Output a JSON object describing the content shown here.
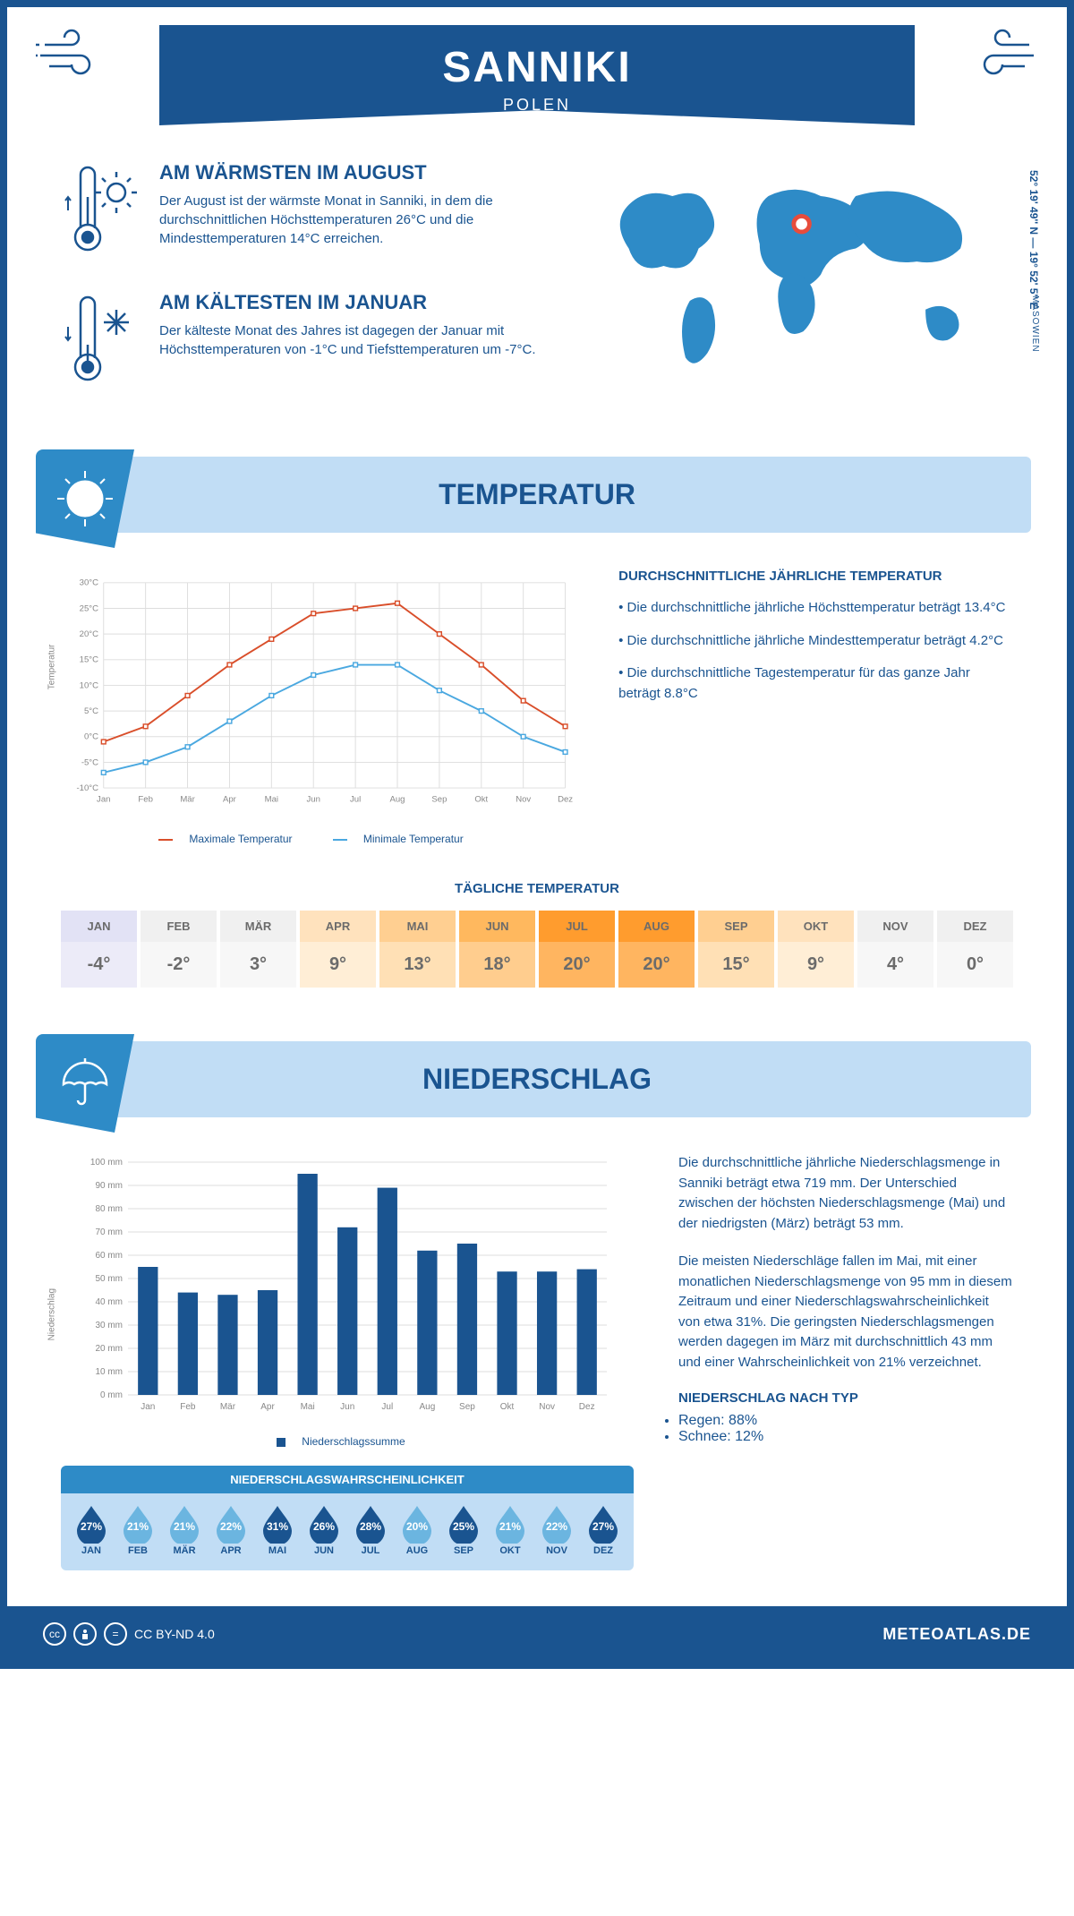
{
  "header": {
    "city": "SANNIKI",
    "country": "POLEN"
  },
  "coords": "52° 19' 49'' N — 19° 52' 5'' E",
  "region": "MASOWIEN",
  "warmest": {
    "title": "AM WÄRMSTEN IM AUGUST",
    "text": "Der August ist der wärmste Monat in Sanniki, in dem die durchschnittlichen Höchsttemperaturen 26°C und die Mindesttemperaturen 14°C erreichen."
  },
  "coldest": {
    "title": "AM KÄLTESTEN IM JANUAR",
    "text": "Der kälteste Monat des Jahres ist dagegen der Januar mit Höchsttemperaturen von -1°C und Tiefsttemperaturen um -7°C."
  },
  "temp_section_title": "TEMPERATUR",
  "temp_chart": {
    "type": "line",
    "months": [
      "Jan",
      "Feb",
      "Mär",
      "Apr",
      "Mai",
      "Jun",
      "Jul",
      "Aug",
      "Sep",
      "Okt",
      "Nov",
      "Dez"
    ],
    "max": [
      -1,
      2,
      8,
      14,
      19,
      24,
      25,
      26,
      20,
      14,
      7,
      2
    ],
    "min": [
      -7,
      -5,
      -2,
      3,
      8,
      12,
      14,
      14,
      9,
      5,
      0,
      -3
    ],
    "max_color": "#d94e2a",
    "min_color": "#4aa8e0",
    "ylim": [
      -10,
      30
    ],
    "ytick_step": 5,
    "y_format": "°C",
    "ylabel": "Temperatur",
    "legend_max": "Maximale Temperatur",
    "legend_min": "Minimale Temperatur",
    "grid_color": "#dddddd",
    "bg_color": "#ffffff",
    "line_width": 2,
    "marker": "square",
    "marker_size": 5
  },
  "temp_text": {
    "title": "DURCHSCHNITTLICHE JÄHRLICHE TEMPERATUR",
    "p1": "Die durchschnittliche jährliche Höchsttemperatur beträgt 13.4°C",
    "p2": "Die durchschnittliche jährliche Mindesttemperatur beträgt 4.2°C",
    "p3": "Die durchschnittliche Tagestemperatur für das ganze Jahr beträgt 8.8°C"
  },
  "daily_temp_title": "TÄGLICHE TEMPERATUR",
  "daily_temp": {
    "months": [
      "JAN",
      "FEB",
      "MÄR",
      "APR",
      "MAI",
      "JUN",
      "JUL",
      "AUG",
      "SEP",
      "OKT",
      "NOV",
      "DEZ"
    ],
    "values": [
      "-4°",
      "-2°",
      "3°",
      "9°",
      "13°",
      "18°",
      "20°",
      "20°",
      "15°",
      "9°",
      "4°",
      "0°"
    ],
    "header_colors": [
      "#e2e2f5",
      "#f0f0f0",
      "#f0f0f0",
      "#ffe2bd",
      "#ffcf91",
      "#ffb85e",
      "#ff9c2e",
      "#ff9c2e",
      "#ffcf91",
      "#ffe2bd",
      "#f0f0f0",
      "#f0f0f0"
    ],
    "value_colors": [
      "#ecebf8",
      "#f7f7f7",
      "#f7f7f7",
      "#ffeed6",
      "#ffe0b5",
      "#ffcd8e",
      "#ffb560",
      "#ffb560",
      "#ffe0b5",
      "#ffeed6",
      "#f7f7f7",
      "#f7f7f7"
    ]
  },
  "precip_section_title": "NIEDERSCHLAG",
  "precip_chart": {
    "type": "bar",
    "months": [
      "Jan",
      "Feb",
      "Mär",
      "Apr",
      "Mai",
      "Jun",
      "Jul",
      "Aug",
      "Sep",
      "Okt",
      "Nov",
      "Dez"
    ],
    "values": [
      55,
      44,
      43,
      45,
      95,
      72,
      89,
      62,
      65,
      53,
      53,
      54
    ],
    "bar_color": "#1a5490",
    "ylim": [
      0,
      100
    ],
    "ytick_step": 10,
    "y_format": " mm",
    "ylabel": "Niederschlag",
    "legend": "Niederschlagssumme",
    "grid_color": "#dddddd",
    "bg_color": "#ffffff",
    "bar_width": 0.5
  },
  "precip_text": {
    "p1": "Die durchschnittliche jährliche Niederschlagsmenge in Sanniki beträgt etwa 719 mm. Der Unterschied zwischen der höchsten Niederschlagsmenge (Mai) und der niedrigsten (März) beträgt 53 mm.",
    "p2": "Die meisten Niederschläge fallen im Mai, mit einer monatlichen Niederschlagsmenge von 95 mm in diesem Zeitraum und einer Niederschlagswahrscheinlichkeit von etwa 31%. Die geringsten Niederschlagsmengen werden dagegen im März mit durchschnittlich 43 mm und einer Wahrscheinlichkeit von 21% verzeichnet.",
    "type_title": "NIEDERSCHLAG NACH TYP",
    "type1": "Regen: 88%",
    "type2": "Schnee: 12%"
  },
  "precip_prob": {
    "title": "NIEDERSCHLAGSWAHRSCHEINLICHKEIT",
    "months": [
      "JAN",
      "FEB",
      "MÄR",
      "APR",
      "MAI",
      "JUN",
      "JUL",
      "AUG",
      "SEP",
      "OKT",
      "NOV",
      "DEZ"
    ],
    "values": [
      "27%",
      "21%",
      "21%",
      "22%",
      "31%",
      "26%",
      "28%",
      "20%",
      "25%",
      "21%",
      "22%",
      "27%"
    ],
    "shades": [
      "dark",
      "light",
      "light",
      "light",
      "dark",
      "dark",
      "dark",
      "light",
      "dark",
      "light",
      "light",
      "dark"
    ],
    "dark_color": "#1a5490",
    "light_color": "#6bb5e0"
  },
  "footer": {
    "license": "CC BY-ND 4.0",
    "site": "METEOATLAS.DE"
  }
}
